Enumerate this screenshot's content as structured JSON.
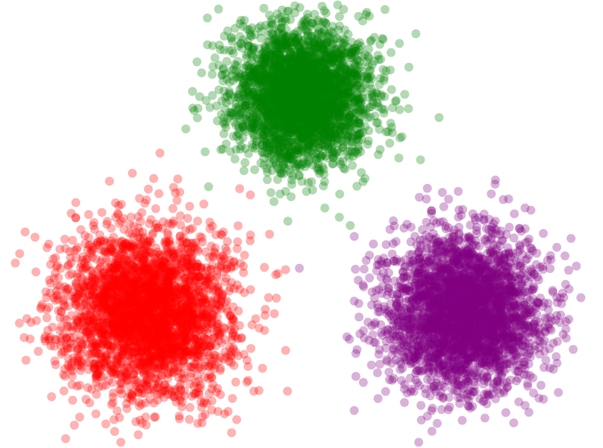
{
  "chart_data": {
    "type": "scatter",
    "title": "",
    "xlabel": "",
    "ylabel": "",
    "axes_visible": false,
    "grid": false,
    "legend": "none",
    "background": "#ffffff",
    "marker": {
      "shape": "circle",
      "alpha": 0.3
    },
    "xlim": [
      -4.5,
      4.5
    ],
    "ylim": [
      -3.3,
      3.3
    ],
    "series": [
      {
        "color": "#ff0000",
        "cluster_center": [
          -2.3,
          -1.3
        ],
        "cluster_sd": 0.62,
        "point_count": 3000
      },
      {
        "color": "#008000",
        "cluster_center": [
          0.0,
          1.9
        ],
        "cluster_sd": 0.52,
        "point_count": 3000
      },
      {
        "color": "#800080",
        "cluster_center": [
          2.4,
          -1.3
        ],
        "cluster_sd": 0.57,
        "point_count": 3000
      }
    ]
  }
}
